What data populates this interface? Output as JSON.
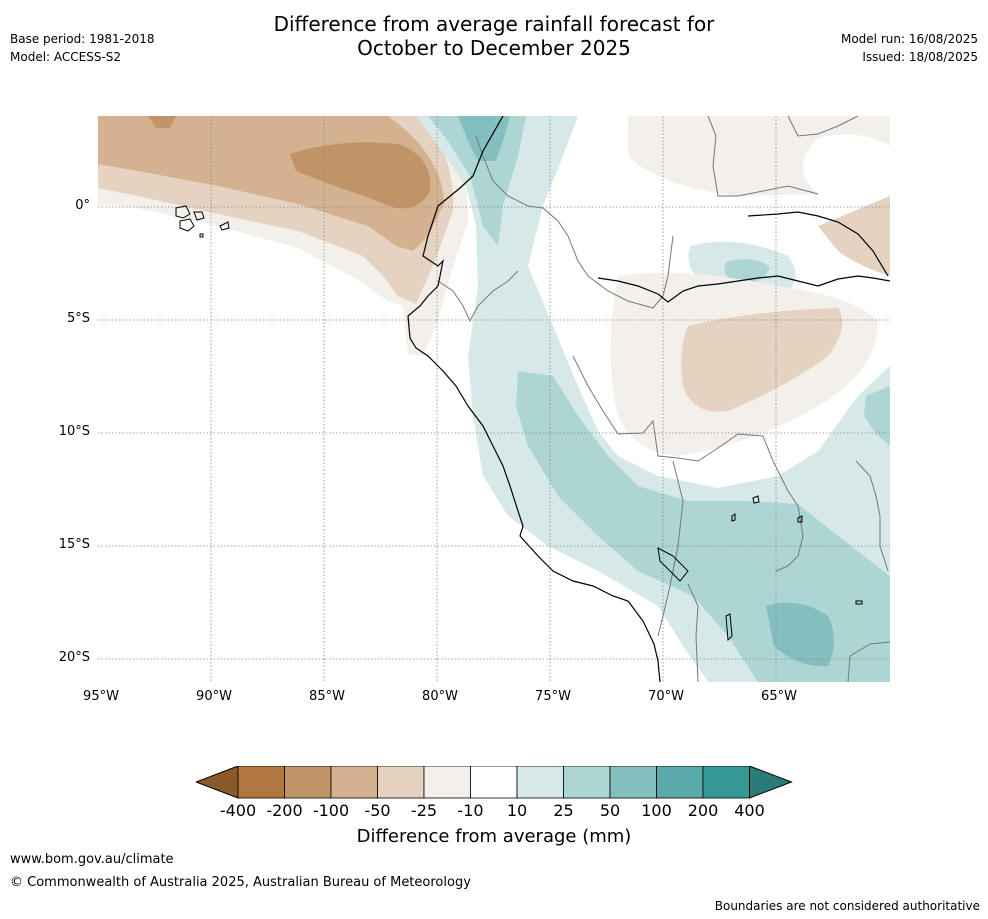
{
  "meta_left": {
    "base_period": "Base period: 1981-2018",
    "model": "Model: ACCESS-S2"
  },
  "meta_right": {
    "model_run": "Model run: 16/08/2025",
    "issued": "Issued: 18/08/2025"
  },
  "title": {
    "line1": "Difference from average rainfall forecast for",
    "line2": "October to December 2025"
  },
  "map": {
    "lat_labels": [
      "0°",
      "5°S",
      "10°S",
      "15°S",
      "20°S"
    ],
    "lon_labels": [
      "95°W",
      "90°W",
      "85°W",
      "80°W",
      "75°W",
      "70°W",
      "65°W"
    ]
  },
  "colorbar": {
    "ticks": [
      "-400",
      "-200",
      "-100",
      "-50",
      "-25",
      "-10",
      "10",
      "25",
      "50",
      "100",
      "200",
      "400"
    ],
    "colors": [
      "#8b5a2b",
      "#b07840",
      "#c19467",
      "#d4b18f",
      "#e5d2c0",
      "#f3efea",
      "#ffffff",
      "#d6e9e8",
      "#acd5d4",
      "#82bfbe",
      "#5aaaa9",
      "#349894",
      "#2a7c79"
    ],
    "label": "Difference from average (mm)"
  },
  "footer": {
    "url": "www.bom.gov.au/climate",
    "copyright": "© Commonwealth of Australia 2025, Australian Bureau of Meteorology",
    "disclaimer": "Boundaries are not considered authoritative"
  }
}
